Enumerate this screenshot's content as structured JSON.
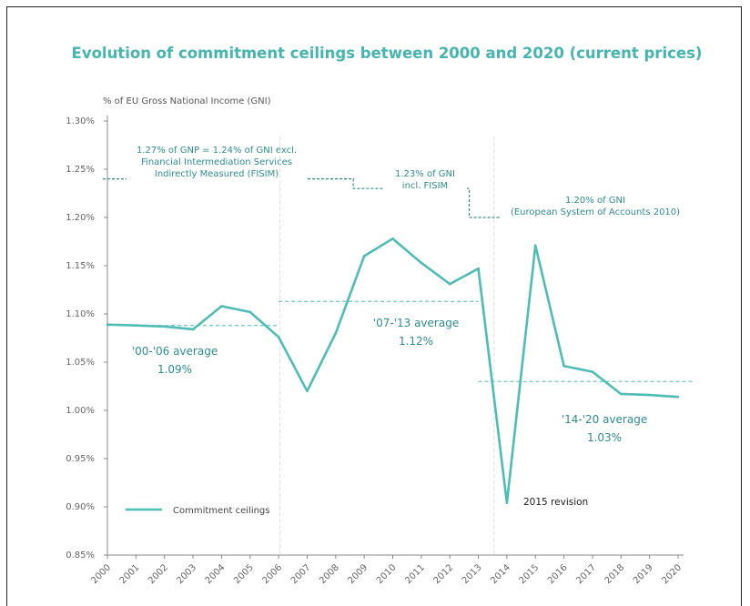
{
  "chart_data": {
    "type": "line",
    "title": "Evolution of commitment ceilings between 2000 and 2020 (current prices)",
    "ylabel": "% of EU Gross National Income (GNI)",
    "ylim": [
      0.85,
      1.3
    ],
    "y_ticks": [
      "1.30%",
      "1.25%",
      "1.20%",
      "1.15%",
      "1.10%",
      "1.05%",
      "1.00%",
      "0.95%",
      "0.90%",
      "0.85%"
    ],
    "y_tick_values": [
      1.3,
      1.25,
      1.2,
      1.15,
      1.1,
      1.05,
      1.0,
      0.95,
      0.9,
      0.85
    ],
    "categories": [
      "2000",
      "2001",
      "2002",
      "2003",
      "2004",
      "2005",
      "2006",
      "2007",
      "2008",
      "2009",
      "2010",
      "2011",
      "2012",
      "2013",
      "2014",
      "2015",
      "2016",
      "2017",
      "2018",
      "2019",
      "2020"
    ],
    "series": [
      {
        "name": "Commitment ceilings",
        "color": "#4dbdb6",
        "values": [
          1.089,
          1.088,
          1.087,
          1.084,
          1.108,
          1.102,
          1.076,
          1.02,
          1.08,
          1.16,
          1.178,
          1.153,
          1.131,
          1.147,
          0.904,
          1.171,
          1.046,
          1.04,
          1.017,
          1.016,
          1.014
        ]
      }
    ],
    "averages": [
      {
        "label_line1": "'00-'06 average",
        "label_line2": "1.09%",
        "value": 1.088,
        "from": "2000",
        "to": "2006"
      },
      {
        "label_line1": "'07-'13 average",
        "label_line2": "1.12%",
        "value": 1.113,
        "from": "2006",
        "to": "2013"
      },
      {
        "label_line1": "'14-'20 average",
        "label_line2": "1.03%",
        "value": 1.03,
        "from": "2013",
        "to": "2020"
      }
    ],
    "own_resources_ceilings": [
      {
        "lines": [
          "1.27% of GNP = 1.24% of GNI excl.",
          "Financial Intermediation Services",
          "Indirectly Measured (FISIM)"
        ],
        "value": 1.24
      },
      {
        "lines": [
          "1.23% of GNI",
          "incl. FISIM"
        ],
        "value": 1.23
      },
      {
        "lines": [
          "1.20% of GNI",
          "(European System of Accounts 2010)"
        ],
        "value": 1.2
      }
    ],
    "revision_label": "2015 revision",
    "legend": {
      "label": "Commitment ceilings",
      "position": "bottom-left"
    },
    "grid": false
  }
}
